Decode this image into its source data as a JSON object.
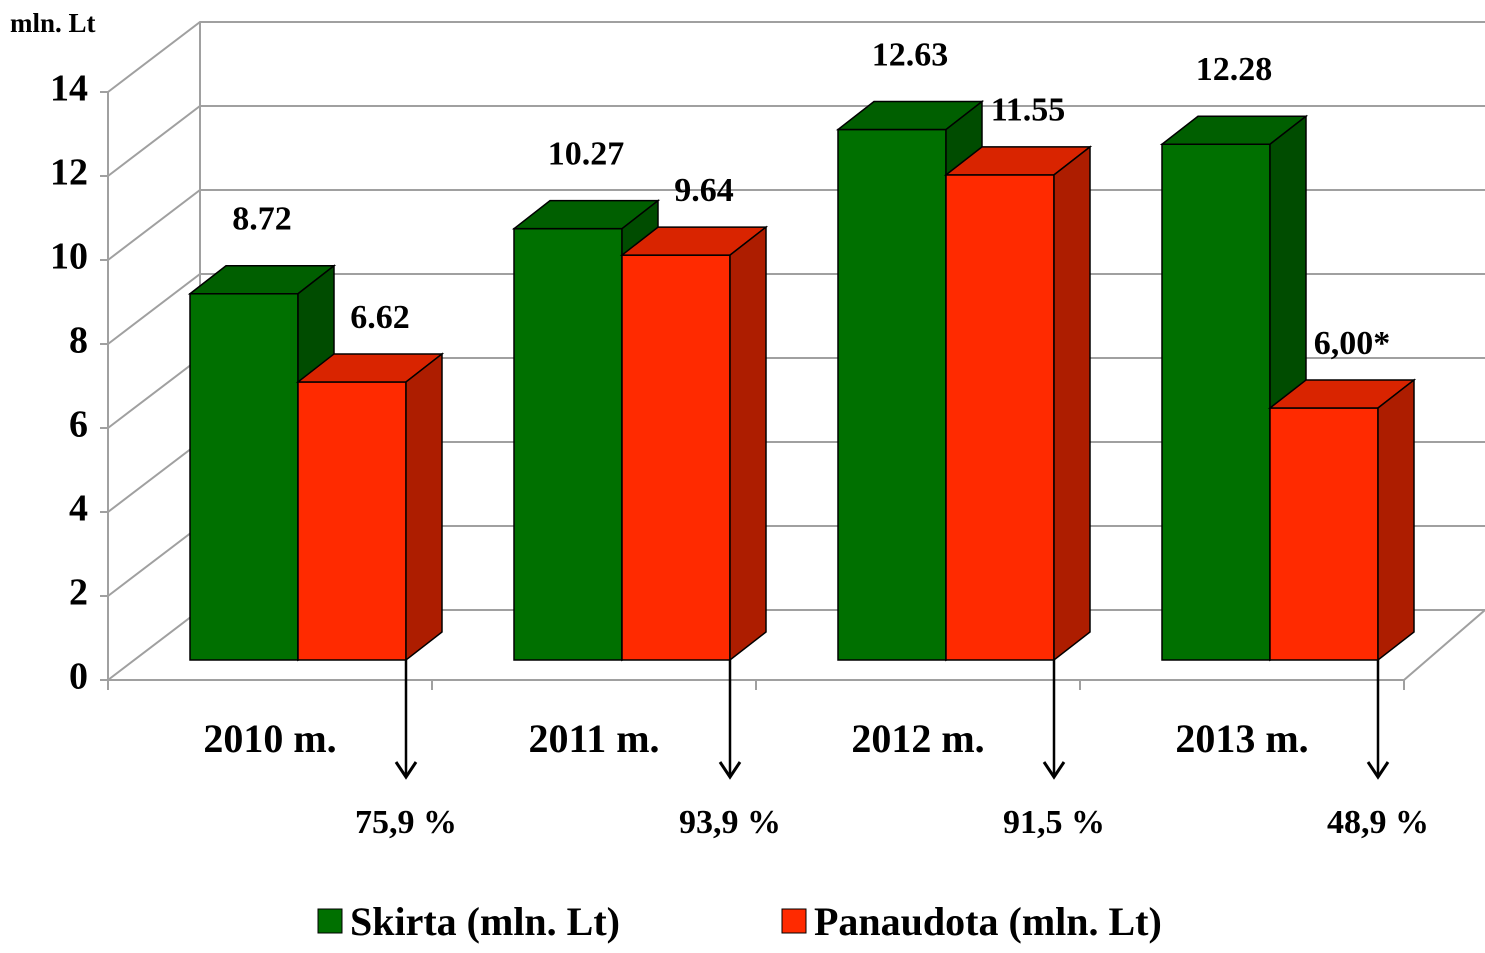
{
  "chart_data": {
    "type": "bar3d",
    "y_label": "mln. Lt",
    "categories": [
      "2010 m.",
      "2011 m.",
      "2012 m.",
      "2013 m."
    ],
    "series": [
      {
        "name": "Skirta (mln. Lt)",
        "color": "#007000",
        "values": [
          8.72,
          10.27,
          12.63,
          12.28
        ]
      },
      {
        "name": "Panaudota (mln. Lt)",
        "color": "#ff2a00",
        "values": [
          6.62,
          9.64,
          11.55,
          6.0
        ],
        "value_labels": [
          "6.62",
          "9.64",
          "11.55",
          "6,00*"
        ]
      }
    ],
    "annotations": [
      "75,9 %",
      "93,9 %",
      "91,5 %",
      "48,9 %"
    ],
    "ylim": [
      0,
      14
    ],
    "yticks": [
      0,
      2,
      4,
      6,
      8,
      10,
      12,
      14
    ],
    "grid": true,
    "legend": "bottom"
  }
}
